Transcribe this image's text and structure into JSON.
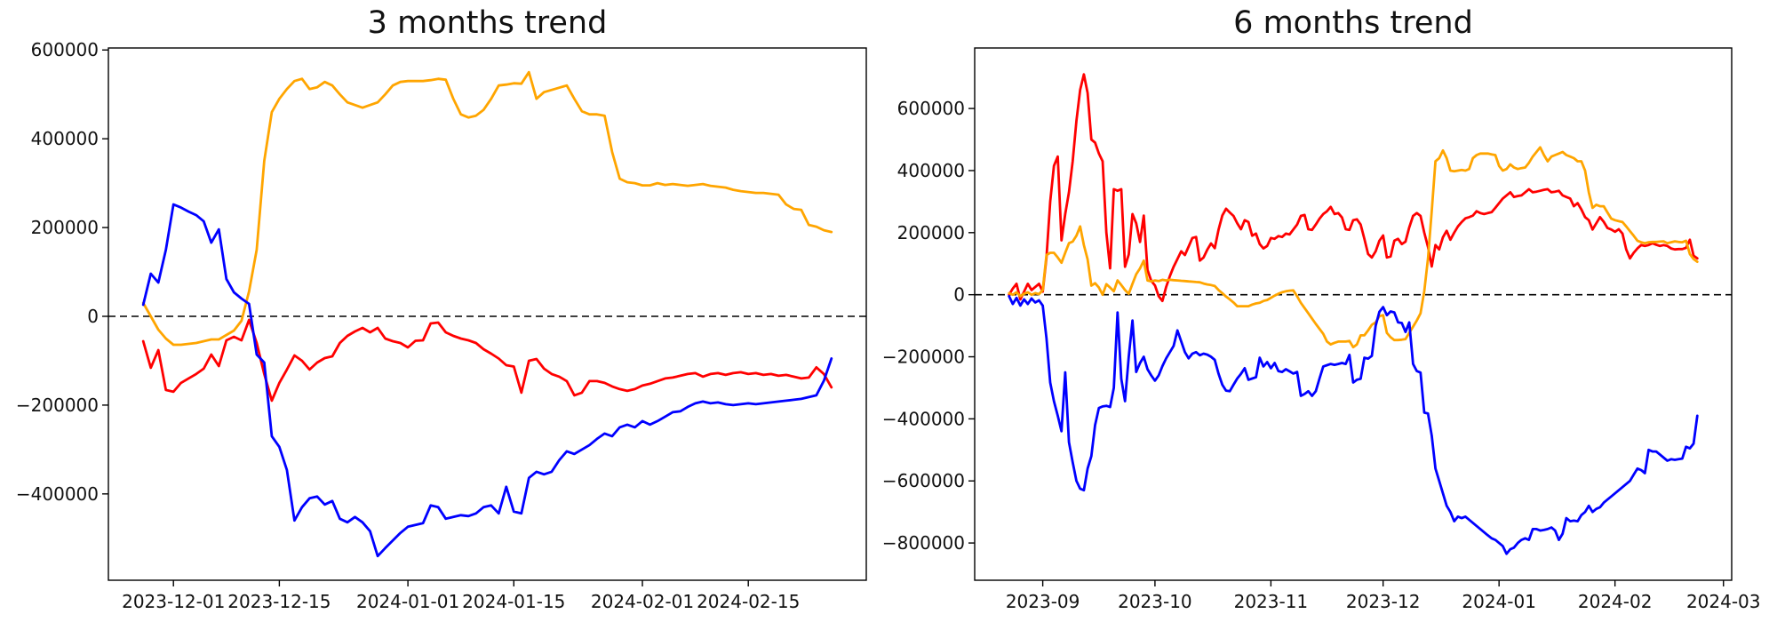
{
  "figure": {
    "background": "#ffffff",
    "text_color": "#111111",
    "frame_color": "#000000"
  },
  "chart_data": [
    {
      "id": "three-months-trend",
      "type": "line",
      "title": "3 months trend",
      "xlabel": "",
      "ylabel": "",
      "grid": false,
      "legend": "none",
      "zero_line": {
        "show": true,
        "color": "#000000",
        "style": "dashed"
      },
      "start_date": "2023-11-27",
      "x_unit": "day",
      "values_unit": 1000,
      "ylim": [
        -594500,
        604500
      ],
      "xlim_idx": [
        -4.6,
        95.6
      ],
      "y_ticks": [
        600000,
        400000,
        200000,
        0,
        -200000,
        -400000
      ],
      "x_ticks": [
        {
          "idx": 4,
          "label": "2023-12-01"
        },
        {
          "idx": 18,
          "label": "2023-12-15"
        },
        {
          "idx": 35,
          "label": "2024-01-01"
        },
        {
          "idx": 49,
          "label": "2024-01-15"
        },
        {
          "idx": 66,
          "label": "2024-02-01"
        },
        {
          "idx": 80,
          "label": "2024-02-15"
        }
      ],
      "series": [
        {
          "name": "red-line",
          "color": "#ff0000",
          "values": [
            -56,
            -116,
            -76,
            -166,
            -170,
            -150,
            -140,
            -130,
            -118,
            -86,
            -112,
            -54,
            -46,
            -54,
            -8,
            -60,
            -130,
            -190,
            -150,
            -120,
            -88,
            -100,
            -120,
            -104,
            -94,
            -90,
            -60,
            -44,
            -34,
            -26,
            -36,
            -26,
            -50,
            -56,
            -60,
            -70,
            -55,
            -54,
            -16,
            -14,
            -36,
            -44,
            -50,
            -54,
            -60,
            -74,
            -84,
            -95,
            -110,
            -113,
            -172,
            -100,
            -96,
            -118,
            -130,
            -136,
            -146,
            -178,
            -172,
            -146,
            -146,
            -150,
            -158,
            -164,
            -168,
            -164,
            -156,
            -152,
            -146,
            -140,
            -138,
            -134,
            -130,
            -128,
            -136,
            -130,
            -128,
            -132,
            -128,
            -126,
            -130,
            -128,
            -132,
            -130,
            -134,
            -132,
            -136,
            -140,
            -138,
            -115,
            -130,
            -160
          ]
        },
        {
          "name": "orange-line",
          "color": "#ffa500",
          "values": [
            30,
            0,
            -30,
            -50,
            -64,
            -64,
            -62,
            -60,
            -56,
            -52,
            -52,
            -42,
            -32,
            -10,
            56,
            150,
            350,
            460,
            490,
            512,
            530,
            535,
            512,
            516,
            528,
            520,
            500,
            482,
            476,
            470,
            476,
            482,
            500,
            520,
            528,
            530,
            530,
            530,
            532,
            535,
            533,
            490,
            455,
            448,
            452,
            465,
            490,
            520,
            522,
            525,
            524,
            550,
            490,
            505,
            510,
            515,
            520,
            490,
            462,
            455,
            455,
            452,
            370,
            310,
            302,
            300,
            295,
            295,
            300,
            296,
            298,
            296,
            294,
            296,
            298,
            294,
            292,
            290,
            285,
            282,
            280,
            278,
            278,
            276,
            274,
            252,
            242,
            240,
            206,
            202,
            194,
            190
          ]
        },
        {
          "name": "blue-line",
          "color": "#0000ff",
          "values": [
            26,
            96,
            76,
            150,
            252,
            245,
            236,
            228,
            214,
            166,
            196,
            84,
            54,
            40,
            28,
            -86,
            -104,
            -270,
            -294,
            -346,
            -460,
            -430,
            -410,
            -406,
            -424,
            -416,
            -456,
            -464,
            -452,
            -464,
            -484,
            -540,
            -522,
            -505,
            -488,
            -474,
            -470,
            -466,
            -426,
            -430,
            -456,
            -452,
            -448,
            -450,
            -444,
            -430,
            -426,
            -444,
            -384,
            -440,
            -444,
            -364,
            -350,
            -356,
            -350,
            -324,
            -304,
            -310,
            -300,
            -290,
            -276,
            -264,
            -270,
            -250,
            -244,
            -250,
            -236,
            -244,
            -236,
            -226,
            -216,
            -214,
            -204,
            -196,
            -192,
            -196,
            -194,
            -198,
            -200,
            -198,
            -196,
            -198,
            -196,
            -194,
            -192,
            -190,
            -188,
            -186,
            -182,
            -178,
            -145,
            -95
          ]
        }
      ]
    },
    {
      "id": "six-months-trend",
      "type": "line",
      "title": "6 months trend",
      "xlabel": "",
      "ylabel": "",
      "grid": false,
      "legend": "none",
      "zero_line": {
        "show": true,
        "color": "#000000",
        "style": "dashed"
      },
      "start_date": "2023-08-23",
      "x_unit": "day",
      "values_unit": 1000,
      "ylim": [
        -920000,
        795000
      ],
      "xlim_idx": [
        -9.2,
        193.2
      ],
      "y_ticks": [
        600000,
        400000,
        200000,
        0,
        -200000,
        -400000,
        -600000,
        -800000
      ],
      "x_ticks": [
        {
          "idx": 9,
          "label": "2023-09"
        },
        {
          "idx": 39,
          "label": "2023-10"
        },
        {
          "idx": 70,
          "label": "2023-11"
        },
        {
          "idx": 100,
          "label": "2023-12"
        },
        {
          "idx": 131,
          "label": "2024-01"
        },
        {
          "idx": 162,
          "label": "2024-02"
        },
        {
          "idx": 191,
          "label": "2024-03"
        }
      ],
      "series": [
        {
          "name": "red-line",
          "color": "#ff0000",
          "values": [
            0,
            20,
            35,
            -15,
            10,
            35,
            15,
            25,
            35,
            10,
            120,
            300,
            415,
            445,
            175,
            260,
            330,
            430,
            560,
            660,
            710,
            650,
            500,
            490,
            455,
            430,
            200,
            85,
            340,
            335,
            340,
            90,
            130,
            260,
            230,
            170,
            255,
            80,
            45,
            30,
            -5,
            -20,
            25,
            60,
            90,
            115,
            140,
            128,
            155,
            183,
            186,
            110,
            120,
            145,
            165,
            150,
            210,
            255,
            277,
            265,
            254,
            230,
            211,
            240,
            234,
            190,
            197,
            163,
            149,
            157,
            183,
            180,
            189,
            186,
            197,
            194,
            210,
            226,
            254,
            257,
            211,
            209,
            226,
            245,
            260,
            269,
            283,
            260,
            263,
            249,
            211,
            209,
            240,
            243,
            226,
            180,
            131,
            120,
            140,
            174,
            191,
            120,
            123,
            174,
            180,
            163,
            171,
            217,
            254,
            263,
            254,
            200,
            154,
            91,
            160,
            146,
            185,
            206,
            177,
            200,
            220,
            234,
            246,
            250,
            255,
            269,
            263,
            260,
            263,
            266,
            280,
            295,
            310,
            320,
            330,
            315,
            318,
            320,
            330,
            340,
            330,
            332,
            335,
            338,
            340,
            330,
            332,
            335,
            320,
            315,
            310,
            285,
            295,
            275,
            250,
            240,
            210,
            230,
            250,
            235,
            215,
            210,
            203,
            211,
            197,
            146,
            117,
            135,
            149,
            160,
            157,
            160,
            166,
            161,
            157,
            160,
            157,
            149,
            146,
            147,
            147,
            151,
            177,
            126,
            117
          ]
        },
        {
          "name": "orange-line",
          "color": "#ffa500",
          "values": [
            5,
            0,
            8,
            -5,
            3,
            8,
            0,
            5,
            2,
            15,
            128,
            135,
            135,
            120,
            103,
            135,
            166,
            171,
            190,
            220,
            160,
            114,
            29,
            37,
            23,
            0,
            34,
            23,
            11,
            46,
            31,
            15,
            3,
            35,
            66,
            85,
            110,
            46,
            43,
            46,
            44,
            48,
            46,
            48,
            47,
            46,
            45,
            44,
            43,
            42,
            41,
            40,
            36,
            33,
            31,
            28,
            15,
            5,
            -6,
            -15,
            -25,
            -37,
            -37,
            -37,
            -37,
            -32,
            -28,
            -26,
            -20,
            -17,
            -10,
            -3,
            3,
            8,
            11,
            13,
            14,
            -5,
            -26,
            -43,
            -60,
            -77,
            -94,
            -110,
            -126,
            -151,
            -160,
            -155,
            -151,
            -151,
            -151,
            -149,
            -169,
            -160,
            -131,
            -131,
            -115,
            -97,
            -89,
            -69,
            -66,
            -123,
            -137,
            -146,
            -146,
            -145,
            -143,
            -123,
            -103,
            -83,
            -60,
            11,
            117,
            269,
            430,
            440,
            465,
            440,
            400,
            398,
            400,
            402,
            400,
            405,
            440,
            450,
            455,
            455,
            455,
            452,
            450,
            415,
            400,
            405,
            420,
            410,
            405,
            408,
            410,
            425,
            445,
            460,
            475,
            450,
            430,
            445,
            450,
            455,
            460,
            450,
            445,
            440,
            430,
            430,
            400,
            330,
            280,
            290,
            285,
            285,
            265,
            245,
            240,
            237,
            234,
            220,
            205,
            190,
            174,
            169,
            166,
            169,
            170,
            170,
            171,
            172,
            166,
            169,
            172,
            170,
            169,
            174,
            131,
            115,
            106
          ]
        },
        {
          "name": "blue-line",
          "color": "#0000ff",
          "values": [
            -5,
            -30,
            -10,
            -35,
            -15,
            -30,
            -12,
            -25,
            -18,
            -35,
            -140,
            -283,
            -343,
            -390,
            -440,
            -250,
            -475,
            -540,
            -600,
            -625,
            -630,
            -560,
            -520,
            -420,
            -365,
            -360,
            -358,
            -362,
            -300,
            -57,
            -271,
            -343,
            -200,
            -83,
            -249,
            -220,
            -200,
            -240,
            -260,
            -277,
            -260,
            -230,
            -205,
            -185,
            -165,
            -115,
            -150,
            -185,
            -205,
            -190,
            -185,
            -195,
            -190,
            -193,
            -200,
            -210,
            -255,
            -290,
            -309,
            -311,
            -290,
            -270,
            -255,
            -237,
            -274,
            -270,
            -266,
            -203,
            -231,
            -217,
            -237,
            -220,
            -246,
            -249,
            -240,
            -247,
            -254,
            -249,
            -326,
            -320,
            -311,
            -326,
            -311,
            -270,
            -231,
            -227,
            -223,
            -226,
            -223,
            -220,
            -223,
            -194,
            -283,
            -274,
            -271,
            -203,
            -206,
            -197,
            -100,
            -55,
            -40,
            -66,
            -54,
            -57,
            -89,
            -91,
            -120,
            -89,
            -223,
            -246,
            -251,
            -380,
            -383,
            -454,
            -560,
            -600,
            -640,
            -680,
            -700,
            -730,
            -715,
            -720,
            -715,
            -725,
            -735,
            -745,
            -755,
            -765,
            -775,
            -785,
            -790,
            -800,
            -810,
            -835,
            -820,
            -815,
            -800,
            -790,
            -785,
            -790,
            -755,
            -755,
            -760,
            -758,
            -755,
            -750,
            -760,
            -790,
            -770,
            -720,
            -730,
            -728,
            -730,
            -710,
            -700,
            -680,
            -700,
            -690,
            -685,
            -670,
            -660,
            -650,
            -640,
            -630,
            -620,
            -610,
            -600,
            -580,
            -560,
            -565,
            -575,
            -500,
            -505,
            -505,
            -515,
            -525,
            -535,
            -530,
            -532,
            -530,
            -528,
            -490,
            -495,
            -480,
            -390
          ]
        }
      ]
    }
  ]
}
